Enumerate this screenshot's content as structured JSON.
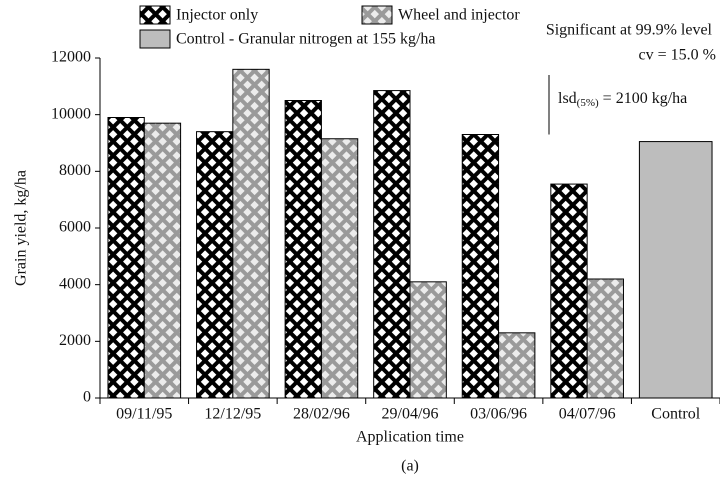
{
  "chart_data": {
    "type": "bar",
    "title": "(a)",
    "x_label": "Application time",
    "y_label": "Grain yield, kg/ha",
    "categories": [
      "09/11/95",
      "12/12/95",
      "28/02/96",
      "29/04/96",
      "03/06/96",
      "04/07/96",
      "Control"
    ],
    "series": [
      {
        "name": "Injector only",
        "color": "#000000",
        "hatch": true,
        "values": [
          9900,
          9400,
          10500,
          10850,
          9300,
          7550,
          null
        ]
      },
      {
        "name": "Wheel and injector",
        "color": "#c8c8c8",
        "hatch": true,
        "values": [
          9700,
          11600,
          9150,
          4100,
          2300,
          4200,
          null
        ]
      },
      {
        "name": "Control - Granular nitrogen at 155 kg/ha",
        "color": "#bdbdbd",
        "hatch": false,
        "values": [
          null,
          null,
          null,
          null,
          null,
          null,
          9050
        ]
      }
    ],
    "ylim": [
      0,
      12000
    ],
    "yticks": [
      0,
      2000,
      4000,
      6000,
      8000,
      10000,
      12000
    ],
    "annotations": {
      "significance": "Significant at 99.9% level",
      "cv": "cv = 15.0 %",
      "lsd": {
        "prefix": "lsd",
        "subscript": "(5%)",
        "text": " = 2100 kg/ha",
        "value": 2100
      }
    }
  }
}
